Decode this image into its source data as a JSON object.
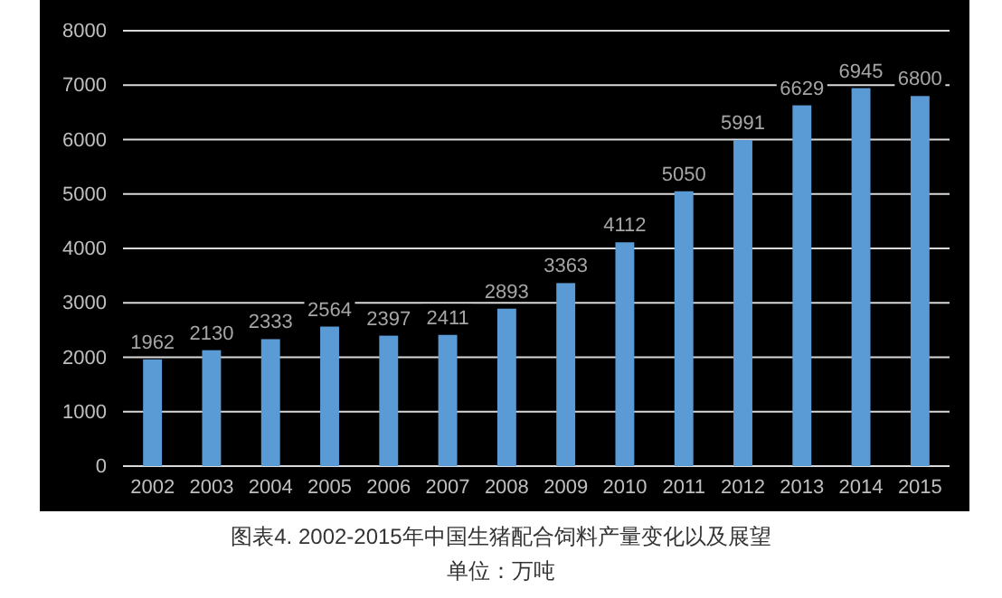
{
  "chart_data": {
    "type": "bar",
    "title": "图表4. 2002-2015年中国生猪配合饲料产量变化以及展望",
    "annotations": [
      "单位：万吨"
    ],
    "categories": [
      "2002",
      "2003",
      "2004",
      "2005",
      "2006",
      "2007",
      "2008",
      "2009",
      "2010",
      "2011",
      "2012",
      "2013",
      "2014",
      "2015"
    ],
    "values": [
      1962,
      2130,
      2333,
      2564,
      2397,
      2411,
      2893,
      3363,
      4112,
      5050,
      5991,
      6629,
      6945,
      6800
    ],
    "color": "#5b9bd5",
    "ylim": [
      0,
      8000
    ],
    "yticks": [
      0,
      1000,
      2000,
      3000,
      4000,
      5000,
      6000,
      7000,
      8000
    ],
    "grid": "y",
    "data_labels": true
  }
}
